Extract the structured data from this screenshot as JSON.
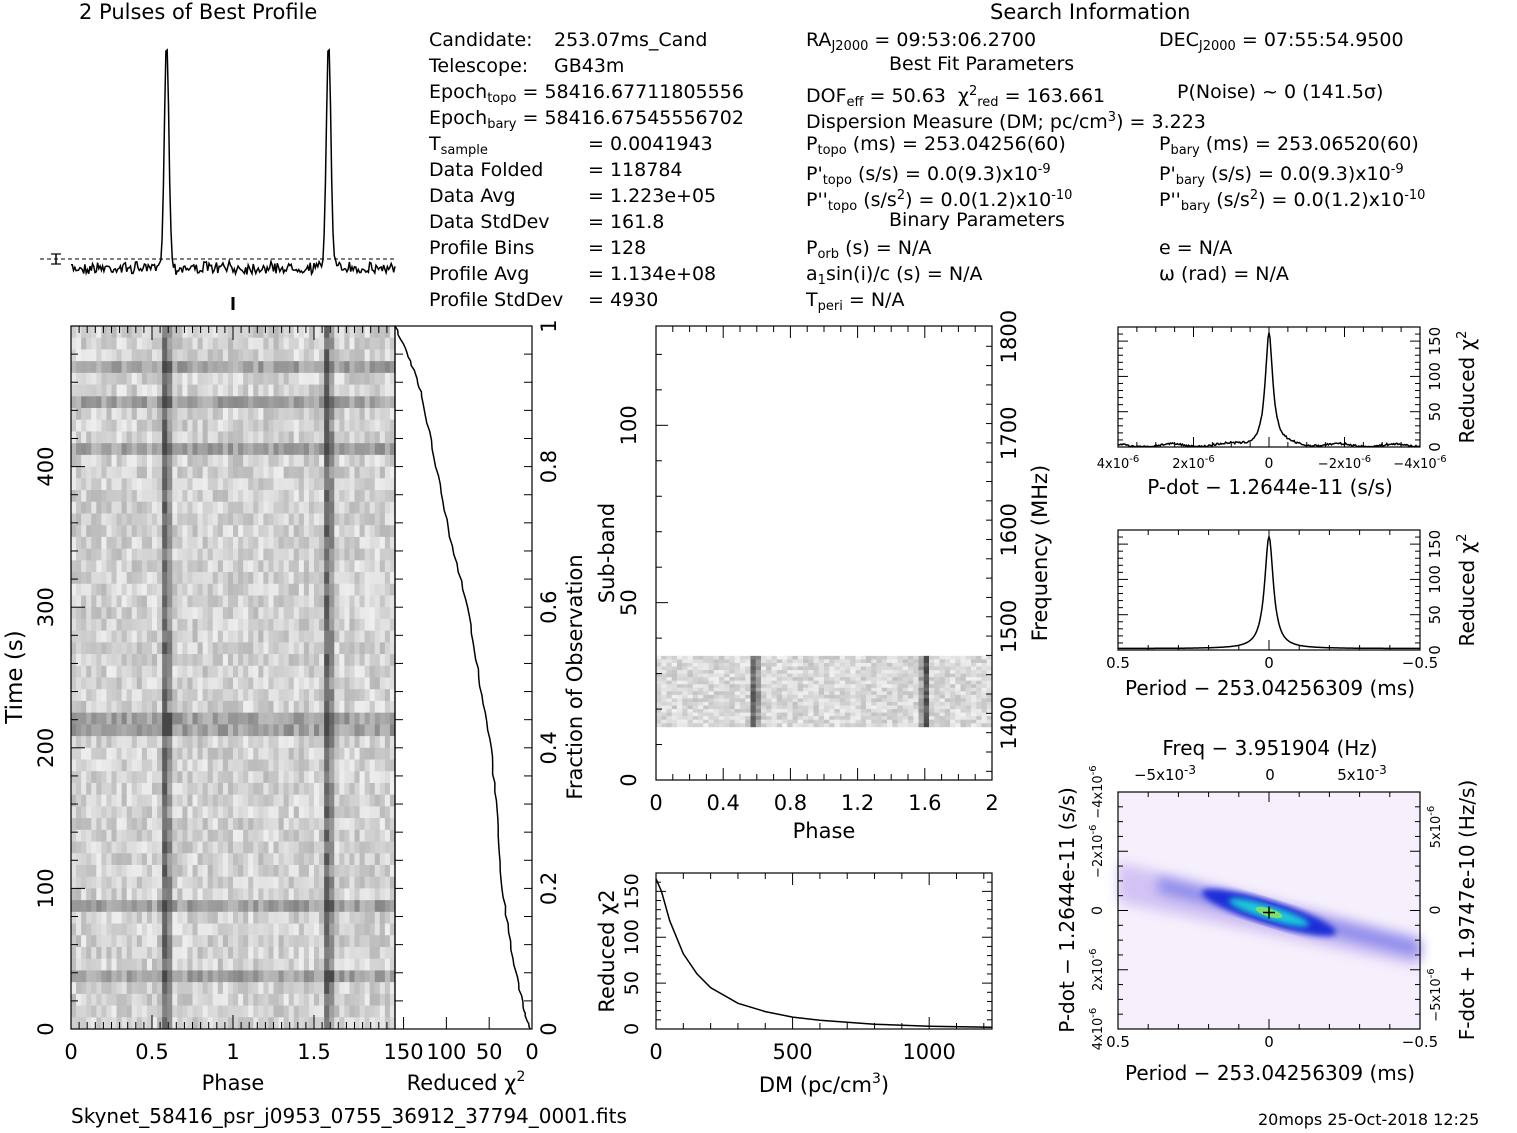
{
  "titles": {
    "profile": "2 Pulses of Best Profile",
    "search": "Search Information",
    "best_fit": "Best Fit Parameters",
    "binary": "Binary Parameters"
  },
  "info": {
    "candidate_label": "Candidate:",
    "candidate": "253.07ms_Cand",
    "telescope_label": "Telescope:",
    "telescope": "GB43m",
    "epoch_topo_label": "Epoch",
    "epoch_topo_sub": "topo",
    "epoch_topo": "= 58416.67711805556",
    "epoch_bary_label": "Epoch",
    "epoch_bary_sub": "bary",
    "epoch_bary": "= 58416.67545556702",
    "tsample_label": "T",
    "tsample_sub": "sample",
    "tsample": "=   0.0041943",
    "data_folded_label": "Data Folded",
    "data_folded": "=   118784",
    "data_avg_label": "Data Avg",
    "data_avg": "=   1.223e+05",
    "data_stddev_label": "Data StdDev",
    "data_stddev": "=   161.8",
    "profile_bins_label": "Profile Bins",
    "profile_bins": "=   128",
    "profile_avg_label": "Profile Avg",
    "profile_avg": "=   1.134e+08",
    "profile_stddev_label": "Profile StdDev",
    "profile_stddev": "=   4930"
  },
  "params": {
    "ra": "RA",
    "ra_sub": "J2000",
    "ra_val": " = 09:53:06.2700",
    "dec": "DEC",
    "dec_sub": "J2000",
    "dec_val": " = 07:55:54.9500",
    "dof": "DOF",
    "dof_sub": "eff",
    "dof_val": " = 50.63",
    "chi": "χ",
    "chi_sup": "2",
    "chi_sub": "red",
    "chi_val": " = 163.661",
    "pnoise": "P(Noise) ~ 0    (141.5σ)",
    "dm": "Dispersion Measure (DM; pc/cm",
    "dm_sup": "3",
    "dm_val": ") = 3.223",
    "ptopo": "P",
    "ptopo_sub": "topo",
    "ptopo_val": " (ms) =  253.04256(60)",
    "pbary": "P",
    "pbary_sub": "bary",
    "pbary_val": " (ms) =  253.06520(60)",
    "pdtopo": "P'",
    "pdtopo_sub": "topo",
    "pdtopo_val": " (s/s) = 0.0(9.3)x10",
    "pdtopo_exp": "-9",
    "pdbary": "P'",
    "pdbary_sub": "bary",
    "pdbary_val": " (s/s) = 0.0(9.3)x10",
    "pdbary_exp": "-9",
    "pddtopo": "P''",
    "pddtopo_sub": "topo",
    "pddtopo_val": " (s/s",
    "pddtopo_sup": "2",
    "pddtopo_val2": ") = 0.0(1.2)x10",
    "pddtopo_exp": "-10",
    "pddbary": "P''",
    "pddbary_sub": "bary",
    "pddbary_val": " (s/s",
    "pddbary_sup": "2",
    "pddbary_val2": ") = 0.0(1.2)x10",
    "pddbary_exp": "-10",
    "porb": "P",
    "porb_sub": "orb",
    "porb_val": " (s) = N/A",
    "ecc": "e = N/A",
    "a1": "a",
    "a1_sub": "1",
    "a1_val": "sin(i)/c (s) = N/A",
    "omega": "ω (rad) = N/A",
    "tperi": "T",
    "tperi_sub": "peri",
    "tperi_val": " = N/A"
  },
  "footer": {
    "filename": "Skynet_58416_psr_j0953_0755_36912_37794_0001.fits",
    "stamp": "20mops 25-Oct-2018 12:25"
  },
  "chart_data": [
    {
      "type": "line",
      "name": "best-profile",
      "title": "2 Pulses of Best Profile",
      "xlim": [
        0,
        2
      ],
      "pulse_phase": [
        0.59,
        1.59
      ],
      "peak_width_phase": 0.02
    },
    {
      "type": "heatmap",
      "name": "time-phase",
      "xlabel": "Phase",
      "ylabel": "Time (s)",
      "xlim": [
        0,
        2
      ],
      "ylim": [
        0,
        500
      ],
      "xticks": [
        "0",
        "0.5",
        "1",
        "1.5"
      ],
      "yticks": [
        "0",
        "100",
        "200",
        "300",
        "400"
      ],
      "pulse_phase": [
        0.59,
        1.59
      ]
    },
    {
      "type": "line",
      "name": "reduced-chi2-vs-time",
      "xlabel": "Reduced χ2",
      "ylabel": "Fraction of Observation",
      "xlim": [
        160,
        0
      ],
      "ylim": [
        0,
        1
      ],
      "xticks": [
        "150",
        "100",
        "50",
        "0"
      ],
      "yticks": [
        "0",
        "0.2",
        "0.4",
        "0.6",
        "0.8",
        "1"
      ],
      "fraction": [
        0,
        0.03,
        0.1,
        0.2,
        0.3,
        0.4,
        0.5,
        0.6,
        0.7,
        0.8,
        0.9,
        0.95,
        1.0
      ],
      "chi2": [
        2,
        10,
        22,
        35,
        40,
        48,
        62,
        75,
        96,
        112,
        128,
        142,
        160
      ]
    },
    {
      "type": "heatmap",
      "name": "subband-phase",
      "xlabel": "Phase",
      "ylabel": "Sub-band",
      "y2label": "Frequency (MHz)",
      "xlim": [
        0,
        2
      ],
      "ylim": [
        0,
        128
      ],
      "xticks": [
        "0",
        "0.4",
        "0.8",
        "1.2",
        "1.6",
        "2"
      ],
      "yticks": [
        "0",
        "50",
        "100"
      ],
      "y2ticks": [
        "1400",
        "1500",
        "1600",
        "1700",
        "1800"
      ],
      "y2lim": [
        1341,
        1811
      ],
      "data_subbands": [
        15,
        35
      ],
      "pulse_phase": [
        0.59,
        1.6
      ]
    },
    {
      "type": "line",
      "name": "dm-curve",
      "xlabel": "DM (pc/cm",
      "xlabel_sup": "3",
      "xlabel_tail": ")",
      "ylabel": "Reduced χ2",
      "xlim": [
        0,
        1230
      ],
      "ylim": [
        0,
        170
      ],
      "xticks": [
        "0",
        "500",
        "1000"
      ],
      "yticks": [
        "0",
        "50",
        "100",
        "150"
      ],
      "x": [
        0,
        20,
        50,
        100,
        150,
        200,
        300,
        400,
        500,
        600,
        800,
        1000,
        1230
      ],
      "y": [
        163.661,
        150,
        118,
        82,
        60,
        45,
        28,
        19,
        13,
        9.5,
        5.2,
        3.0,
        2.0
      ]
    },
    {
      "type": "line",
      "name": "pdot-curve",
      "xlabel": "P-dot − 1.2644e-11 (s/s)",
      "ylabel": "Reduced χ2",
      "xlim": [
        4e-06,
        -4e-06
      ],
      "ylim": [
        0,
        170
      ],
      "xticks": [
        "4x10",
        "2x10",
        "0",
        "−2x10",
        "−4x10"
      ],
      "xtick_exp": "-6",
      "yticks": [
        "0",
        "50",
        "100",
        "150"
      ],
      "peak": 163.661
    },
    {
      "type": "line",
      "name": "period-curve",
      "xlabel": "Period − 253.04256309 (ms)",
      "ylabel": "Reduced χ2",
      "xlim": [
        0.5,
        -0.5
      ],
      "ylim": [
        0,
        170
      ],
      "xticks": [
        "0.5",
        "0",
        "−0.5"
      ],
      "yticks": [
        "0",
        "50",
        "100",
        "150"
      ],
      "peak": 163.661
    },
    {
      "type": "heatmap",
      "name": "period-pdot",
      "title": "Freq − 3.951904 (Hz)",
      "xlabel": "Period − 253.04256309 (ms)",
      "ylabel": "P-dot − 1.2644e-11 (s/s)",
      "y2label": "F-dot + 1.9747e-10 (Hz/s)",
      "xlim": [
        0.5,
        -0.5
      ],
      "ylim": [
        4e-06,
        -4e-06
      ],
      "xticks": [
        "0.5",
        "0",
        "−0.5"
      ],
      "topticks": [
        "−5x10",
        "0",
        "5x10"
      ],
      "top_exp": "-3",
      "yticks": [
        "4x10",
        "2x10",
        "0",
        "−2x10",
        "−4x10"
      ],
      "ytick_exp": "-6",
      "y2ticks": [
        "5x10",
        "0",
        "−5x10"
      ],
      "y2_exp": "-6"
    }
  ]
}
